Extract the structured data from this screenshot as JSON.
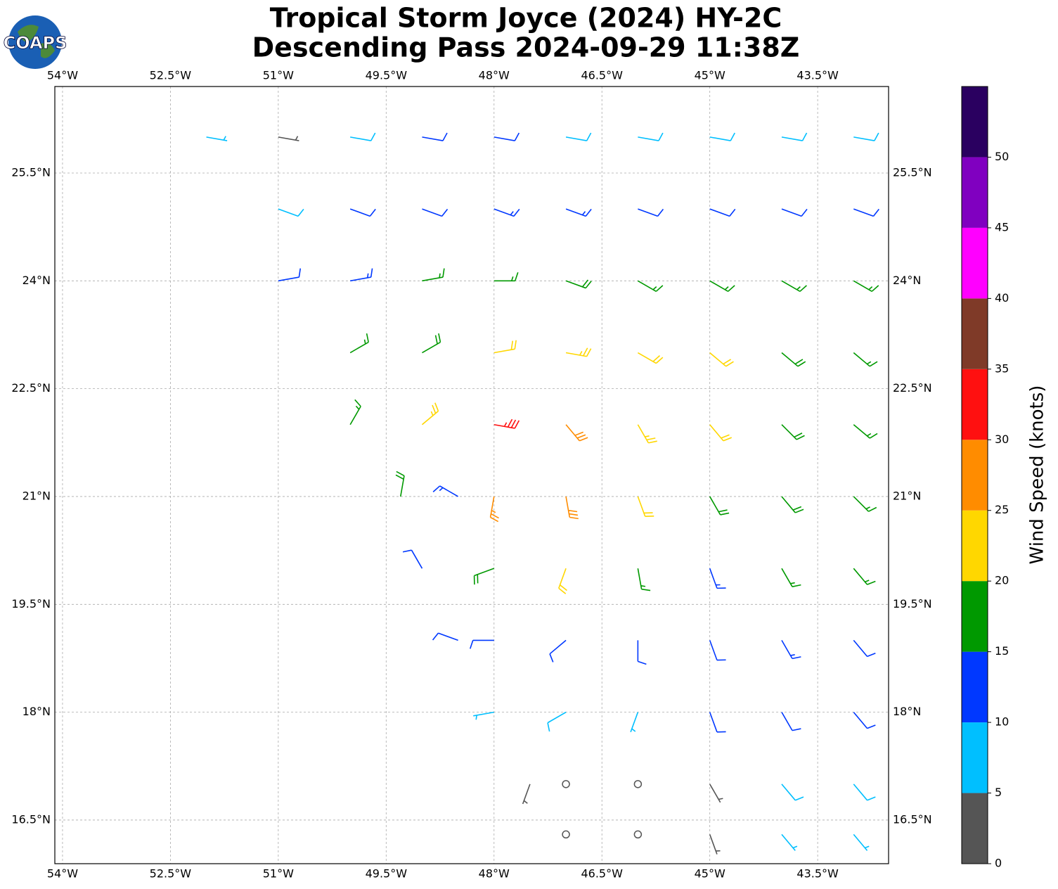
{
  "chart_data": {
    "type": "barbs",
    "title": "Tropical Storm Joyce (2024) HY-2C",
    "subtitle": "Descending Pass 2024-09-29 11:38Z",
    "logo_text": "COAPS",
    "xlim": [
      -54.107,
      -42.514
    ],
    "ylim": [
      15.893,
      26.703
    ],
    "xticks": [
      {
        "value": -54,
        "label": "54°W"
      },
      {
        "value": -52.5,
        "label": "52.5°W"
      },
      {
        "value": -51,
        "label": "51°W"
      },
      {
        "value": -49.5,
        "label": "49.5°W"
      },
      {
        "value": -48,
        "label": "48°W"
      },
      {
        "value": -46.5,
        "label": "46.5°W"
      },
      {
        "value": -45,
        "label": "45°W"
      },
      {
        "value": -43.5,
        "label": "43.5°W"
      }
    ],
    "yticks": [
      {
        "value": 25.5,
        "label": "25.5°N"
      },
      {
        "value": 24,
        "label": "24°N"
      },
      {
        "value": 22.5,
        "label": "22.5°N"
      },
      {
        "value": 21,
        "label": "21°N"
      },
      {
        "value": 19.5,
        "label": "19.5°N"
      },
      {
        "value": 18,
        "label": "18°N"
      },
      {
        "value": 16.5,
        "label": "16.5°N"
      }
    ],
    "grid": true,
    "colorbar": {
      "label": "Wind Speed (knots)",
      "lim": [
        0,
        55
      ],
      "bounds": [
        0,
        5,
        10,
        15,
        20,
        25,
        30,
        35,
        40,
        45,
        50,
        55
      ],
      "colors": [
        "#555555",
        "#00bfff",
        "#0038ff",
        "#009900",
        "#ffd700",
        "#ff8c00",
        "#ff1010",
        "#7f3a28",
        "#ff00ff",
        "#8000c0",
        "#2a0060"
      ],
      "ticks": [
        0,
        5,
        10,
        15,
        20,
        25,
        30,
        35,
        40,
        45,
        50
      ]
    },
    "barbs": {
      "lon": [
        -52,
        -51,
        -50,
        -49,
        -48,
        -47,
        -46,
        -45,
        -44,
        -43,
        -51,
        -50,
        -49,
        -48,
        -47,
        -46,
        -45,
        -44,
        -43,
        -51,
        -50,
        -49,
        -48,
        -47,
        -46,
        -45,
        -44,
        -43,
        -50,
        -49,
        -48,
        -47,
        -46,
        -45,
        -44,
        -43,
        -50,
        -49,
        -48,
        -47,
        -46,
        -45,
        -44,
        -43,
        -49.3,
        -48.5,
        -48,
        -47,
        -46,
        -45,
        -44,
        -43,
        -49,
        -48,
        -47,
        -46,
        -45,
        -44,
        -43,
        -48.5,
        -48,
        -47,
        -46,
        -45,
        -44,
        -43,
        -48,
        -47,
        -46,
        -45,
        -44,
        -43,
        -47.5,
        -47,
        -46,
        -45,
        -44,
        -43,
        -47,
        -46,
        -45,
        -44,
        -43
      ],
      "lat": [
        26,
        26,
        26,
        26,
        26,
        26,
        26,
        26,
        26,
        26,
        25,
        25,
        25,
        25,
        25,
        25,
        25,
        25,
        25,
        24,
        24,
        24,
        24,
        24,
        24,
        24,
        24,
        24,
        23,
        23,
        23,
        23,
        23,
        23,
        23,
        23,
        22,
        22,
        22,
        22,
        22,
        22,
        22,
        22,
        21,
        21,
        21,
        21,
        21,
        21,
        21,
        21,
        20,
        20,
        20,
        20,
        20,
        20,
        20,
        19,
        19,
        19,
        19,
        19,
        19,
        19,
        18,
        18,
        18,
        18,
        18,
        18,
        17,
        17,
        17,
        17,
        17,
        17,
        16.3,
        16.3,
        16.3,
        16.3,
        16.3
      ],
      "speed": [
        5,
        4,
        8,
        12,
        11,
        8,
        8,
        9,
        8,
        9,
        8,
        11,
        12,
        13,
        13,
        12,
        11,
        11,
        12,
        11,
        13,
        15,
        17,
        18,
        17,
        16,
        15,
        15,
        17,
        19,
        22,
        23,
        22,
        21,
        18,
        17,
        17,
        24,
        33,
        28,
        24,
        20,
        18,
        17,
        18,
        14,
        26,
        28,
        22,
        18,
        18,
        17,
        12,
        18,
        22,
        17,
        14,
        15,
        16,
        10,
        12,
        10,
        12,
        12,
        13,
        12,
        7,
        8,
        7,
        11,
        11,
        11,
        3,
        2,
        1,
        4,
        8,
        9,
        2,
        1,
        3,
        7,
        7
      ],
      "direction": [
        100,
        100,
        100,
        100,
        100,
        100,
        100,
        100,
        100,
        100,
        110,
        110,
        110,
        110,
        110,
        110,
        110,
        110,
        110,
        80,
        80,
        80,
        90,
        110,
        120,
        120,
        120,
        120,
        60,
        60,
        80,
        100,
        120,
        130,
        130,
        130,
        30,
        50,
        100,
        140,
        150,
        140,
        135,
        130,
        10,
        300,
        190,
        170,
        160,
        150,
        140,
        135,
        330,
        250,
        200,
        170,
        160,
        150,
        140,
        290,
        270,
        230,
        180,
        160,
        150,
        140,
        260,
        240,
        200,
        160,
        150,
        140,
        200,
        220,
        180,
        150,
        140,
        140,
        200,
        180,
        160,
        140,
        140
      ]
    }
  }
}
